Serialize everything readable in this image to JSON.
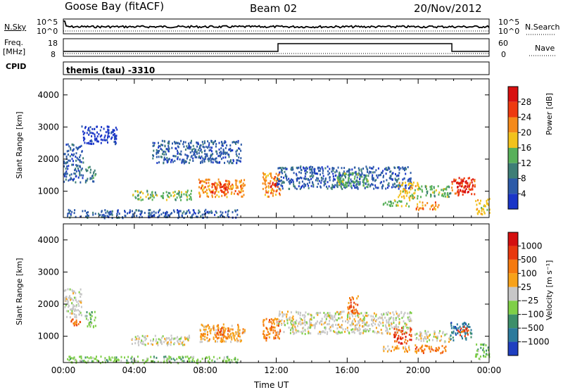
{
  "header": {
    "station": "Goose Bay (fitACF)",
    "beam": "Beam 02",
    "date": "20/Nov/2012"
  },
  "top_panel": {
    "nsky_label": "N.Sky",
    "nsky_ticks": [
      "10^5",
      "10^0"
    ],
    "nsearch_label": "N.Search",
    "nsearch_ticks": [
      "10^5",
      "10^0"
    ],
    "freq_label_1": "Freq.",
    "freq_label_2": "[MHz]",
    "freq_ticks": [
      "18",
      "8"
    ],
    "nave_label": "Nave",
    "nave_ticks": [
      "60",
      "0"
    ],
    "cpid_label": "CPID",
    "cpid_text": "themis (tau) -3310"
  },
  "chart_data": [
    {
      "type": "heatmap",
      "name": "power",
      "ylabel": "Slant Range [km]",
      "ylim": [
        180,
        4500
      ],
      "yticks": [
        "4000",
        "3000",
        "2000",
        "1000"
      ],
      "colorbar_label": "Power [dB]",
      "colorbar_ticks": [
        "28",
        "24",
        "20",
        "16",
        "12",
        "8",
        "4"
      ],
      "colors": [
        "#1a35c8",
        "#2c5aa8",
        "#3d7e76",
        "#58b05a",
        "#f2c21c",
        "#f58a1a",
        "#ee3a10",
        "#d80f0f"
      ],
      "blobs": [
        {
          "t": [
            0.0,
            1.1
          ],
          "r": [
            1300,
            2500
          ],
          "level": 1
        },
        {
          "t": [
            1.2,
            1.8
          ],
          "r": [
            1300,
            1800
          ],
          "level": 2
        },
        {
          "t": [
            3.8,
            7.2
          ],
          "r": [
            750,
            1050
          ],
          "level": 3
        },
        {
          "t": [
            7.6,
            10.2
          ],
          "r": [
            850,
            1400
          ],
          "level": 5
        },
        {
          "t": [
            8.3,
            9.4
          ],
          "r": [
            950,
            1300
          ],
          "level": 6
        },
        {
          "t": [
            11.2,
            12.2
          ],
          "r": [
            850,
            1600
          ],
          "level": 5
        },
        {
          "t": [
            11.6,
            12.0
          ],
          "r": [
            950,
            1300
          ],
          "level": 7
        },
        {
          "t": [
            12.0,
            19.6
          ],
          "r": [
            1100,
            1800
          ],
          "level": 1
        },
        {
          "t": [
            15.4,
            17.2
          ],
          "r": [
            1150,
            1600
          ],
          "level": 3
        },
        {
          "t": [
            18.0,
            19.5
          ],
          "r": [
            550,
            750
          ],
          "level": 3
        },
        {
          "t": [
            18.8,
            20.0
          ],
          "r": [
            800,
            1300
          ],
          "level": 4
        },
        {
          "t": [
            19.8,
            21.8
          ],
          "r": [
            850,
            1200
          ],
          "level": 3
        },
        {
          "t": [
            19.8,
            21.2
          ],
          "r": [
            450,
            700
          ],
          "level": 5
        },
        {
          "t": [
            21.8,
            23.2
          ],
          "r": [
            900,
            1450
          ],
          "level": 6
        },
        {
          "t": [
            22.2,
            22.8
          ],
          "r": [
            1000,
            1350
          ],
          "level": 7
        },
        {
          "t": [
            23.2,
            24.0
          ],
          "r": [
            300,
            800
          ],
          "level": 4
        },
        {
          "t": [
            0.2,
            9.8
          ],
          "r": [
            190,
            450
          ],
          "level": 1
        },
        {
          "t": [
            1.0,
            3.0
          ],
          "r": [
            2500,
            3050
          ],
          "level": 0
        },
        {
          "t": [
            5.0,
            10.0
          ],
          "r": [
            1900,
            2600
          ],
          "level": 1
        }
      ]
    },
    {
      "type": "heatmap",
      "name": "velocity",
      "ylabel": "Slant Range [km]",
      "ylim": [
        180,
        4500
      ],
      "yticks": [
        "4000",
        "3000",
        "2000",
        "1000"
      ],
      "colorbar_label": "Velocity [m s⁻¹]",
      "colorbar_ticks": [
        "1000",
        "500",
        "100",
        "25",
        "−25",
        "−100",
        "−500",
        "−1000"
      ],
      "colors": [
        "#1f3fc0",
        "#2b7a9c",
        "#3d8f6a",
        "#7fcf48",
        "#c7c7c7",
        "#f7a21a",
        "#f57a10",
        "#e8380e",
        "#d40f0f"
      ],
      "blobs": [
        {
          "t": [
            0.0,
            1.0
          ],
          "r": [
            1600,
            2500
          ],
          "level": 4
        },
        {
          "t": [
            0.4,
            1.0
          ],
          "r": [
            1300,
            1600
          ],
          "level": 6
        },
        {
          "t": [
            1.2,
            1.8
          ],
          "r": [
            1300,
            1800
          ],
          "level": 3
        },
        {
          "t": [
            3.8,
            7.2
          ],
          "r": [
            750,
            1050
          ],
          "level": 4
        },
        {
          "t": [
            7.6,
            10.2
          ],
          "r": [
            850,
            1400
          ],
          "level": 5
        },
        {
          "t": [
            8.4,
            9.4
          ],
          "r": [
            950,
            1300
          ],
          "level": 6
        },
        {
          "t": [
            11.2,
            12.2
          ],
          "r": [
            850,
            1600
          ],
          "level": 6
        },
        {
          "t": [
            12.0,
            19.6
          ],
          "r": [
            1100,
            1800
          ],
          "level": 4
        },
        {
          "t": [
            16.0,
            16.6
          ],
          "r": [
            1700,
            2300
          ],
          "level": 6
        },
        {
          "t": [
            18.0,
            19.5
          ],
          "r": [
            550,
            750
          ],
          "level": 5
        },
        {
          "t": [
            18.6,
            19.6
          ],
          "r": [
            800,
            1300
          ],
          "level": 7
        },
        {
          "t": [
            19.8,
            21.8
          ],
          "r": [
            850,
            1200
          ],
          "level": 4
        },
        {
          "t": [
            19.8,
            21.6
          ],
          "r": [
            500,
            750
          ],
          "level": 6
        },
        {
          "t": [
            21.8,
            23.0
          ],
          "r": [
            900,
            1450
          ],
          "level": 1
        },
        {
          "t": [
            22.2,
            22.8
          ],
          "r": [
            1000,
            1350
          ],
          "level": 7
        },
        {
          "t": [
            23.2,
            24.0
          ],
          "r": [
            300,
            800
          ],
          "level": 3
        },
        {
          "t": [
            0.2,
            9.8
          ],
          "r": [
            190,
            400
          ],
          "level": 3
        }
      ]
    }
  ],
  "time_axis": {
    "ticks": [
      "00:00",
      "04:00",
      "08:00",
      "12:00",
      "16:00",
      "20:00",
      "00:00"
    ],
    "label": "Time UT"
  }
}
